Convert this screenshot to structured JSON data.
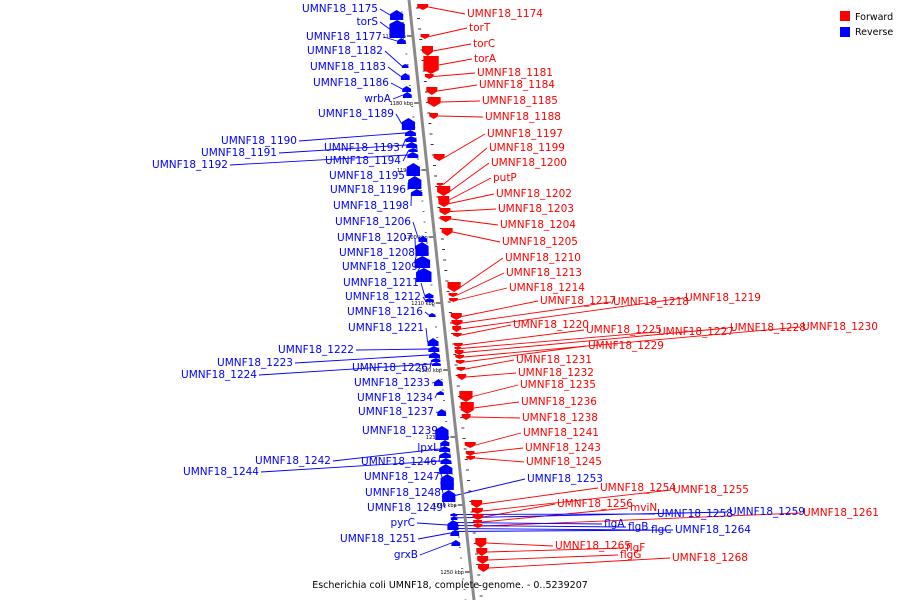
{
  "caption": "Escherichia coli UMNF18, complete genome. - 0..5239207",
  "legend": [
    {
      "label": "Forward",
      "color": "#ff0000"
    },
    {
      "label": "Reverse",
      "color": "#0000ff"
    }
  ],
  "colors": {
    "forward": "#ff0000",
    "reverse": "#0000ff",
    "axis": "#808080"
  },
  "ticks": [
    "1170 kbp",
    "1180 kbp",
    "1190 kbp",
    "1200 kbp",
    "1210 kbp",
    "1220 kbp",
    "1230 kbp",
    "1240 kbp",
    "1250 kbp"
  ],
  "forward_genes": [
    "UMNF18_1174",
    "torT",
    "torC",
    "torA",
    "UMNF18_1181",
    "UMNF18_1184",
    "UMNF18_1185",
    "UMNF18_1188",
    "UMNF18_1197",
    "UMNF18_1199",
    "UMNF18_1200",
    "putP",
    "UMNF18_1202",
    "UMNF18_1203",
    "UMNF18_1204",
    "UMNF18_1205",
    "UMNF18_1210",
    "UMNF18_1213",
    "UMNF18_1214",
    "UMNF18_1217",
    "UMNF18_1218",
    "UMNF18_1219",
    "UMNF18_1220",
    "UMNF18_1225",
    "UMNF18_1227",
    "UMNF18_1228",
    "UMNF18_1230",
    "UMNF18_1229",
    "UMNF18_1231",
    "UMNF18_1232",
    "UMNF18_1235",
    "UMNF18_1236",
    "UMNF18_1238",
    "UMNF18_1241",
    "UMNF18_1243",
    "UMNF18_1245",
    "UMNF18_1254",
    "UMNF18_1255",
    "UMNF18_1256",
    "mviN",
    "UMNF18_1261",
    "UMNF18_1265",
    "flgF",
    "flgG",
    "UMNF18_1268"
  ],
  "reverse_genes": [
    "UMNF18_1175",
    "torS",
    "UMNF18_1177",
    "UMNF18_1182",
    "UMNF18_1183",
    "UMNF18_1186",
    "wrbA",
    "UMNF18_1189",
    "UMNF18_1190",
    "UMNF18_1193",
    "UMNF18_1191",
    "UMNF18_1194",
    "UMNF18_1192",
    "UMNF18_1195",
    "UMNF18_1196",
    "UMNF18_1198",
    "UMNF18_1206",
    "UMNF18_1207",
    "UMNF18_1208",
    "UMNF18_1209",
    "UMNF18_1211",
    "UMNF18_1212",
    "UMNF18_1216",
    "UMNF18_1221",
    "UMNF18_1222",
    "UMNF18_1223",
    "UMNF18_1226",
    "UMNF18_1224",
    "UMNF18_1233",
    "UMNF18_1234",
    "UMNF18_1237",
    "UMNF18_1239",
    "lpxL",
    "UMNF18_1242",
    "UMNF18_1246",
    "UMNF18_1244",
    "UMNF18_1247",
    "UMNF18_1248",
    "UMNF18_1249",
    "pyrC",
    "UMNF18_1251",
    "grxB",
    "UMNF18_1253",
    "UMNF18_1258",
    "UMNF18_1259",
    "flgA",
    "flgB",
    "flgC",
    "UMNF18_1264"
  ]
}
